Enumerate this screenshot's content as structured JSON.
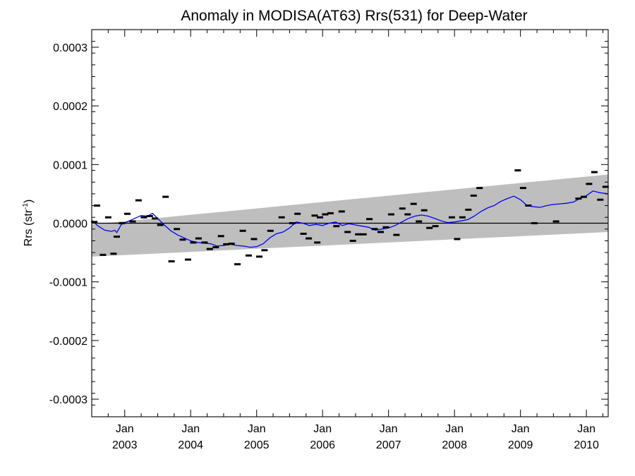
{
  "chart_data": {
    "type": "line",
    "title": "Anomaly in MODISA(AT63) Rrs(531) for Deep-Water",
    "ylabel_main": "Rrs (str",
    "ylabel_sup": "-1",
    "ylabel_close": ")",
    "xlabel": "",
    "ylim": [
      -0.00033,
      0.00033
    ],
    "xlim": [
      2002.5,
      2010.33
    ],
    "yticks": [
      {
        "value": 0.0003,
        "label": "0.0003"
      },
      {
        "value": 0.0002,
        "label": "0.0002"
      },
      {
        "value": 0.0001,
        "label": "0.0001"
      },
      {
        "value": 0.0,
        "label": "0.0000"
      },
      {
        "value": -0.0001,
        "label": "-0.0001"
      },
      {
        "value": -0.0002,
        "label": "-0.0002"
      },
      {
        "value": -0.0003,
        "label": "-0.0003"
      }
    ],
    "xticks": [
      {
        "value": 2003.0,
        "month": "Jan",
        "year": "2003"
      },
      {
        "value": 2004.0,
        "month": "Jan",
        "year": "2004"
      },
      {
        "value": 2005.0,
        "month": "Jan",
        "year": "2005"
      },
      {
        "value": 2006.0,
        "month": "Jan",
        "year": "2006"
      },
      {
        "value": 2007.0,
        "month": "Jan",
        "year": "2007"
      },
      {
        "value": 2008.0,
        "month": "Jan",
        "year": "2008"
      },
      {
        "value": 2009.0,
        "month": "Jan",
        "year": "2009"
      },
      {
        "value": 2010.0,
        "month": "Jan",
        "year": "2010"
      }
    ],
    "band": {
      "lower": [
        [
          2002.5,
          -5.7e-05
        ],
        [
          2010.33,
          -1.5e-05
        ]
      ],
      "upper": [
        [
          2002.5,
          -2e-06
        ],
        [
          2010.33,
          8.3e-05
        ]
      ],
      "color": "#bebebe"
    },
    "zero_line_color": "#000000",
    "monthly_points": [
      [
        2002.54,
        2e-06
      ],
      [
        2002.58,
        3e-05
      ],
      [
        2002.67,
        -5.4e-05
      ],
      [
        2002.75,
        1e-05
      ],
      [
        2002.83,
        -5.2e-05
      ],
      [
        2002.88,
        -2.3e-05
      ],
      [
        2002.96,
        0.0
      ],
      [
        2003.04,
        1.6e-05
      ],
      [
        2003.12,
        3e-06
      ],
      [
        2003.21,
        3.9e-05
      ],
      [
        2003.29,
        1e-05
      ],
      [
        2003.38,
        1.2e-05
      ],
      [
        2003.46,
        8e-06
      ],
      [
        2003.54,
        -3e-06
      ],
      [
        2003.62,
        4.5e-05
      ],
      [
        2003.71,
        -6.5e-05
      ],
      [
        2003.79,
        -1e-05
      ],
      [
        2003.88,
        -2.8e-05
      ],
      [
        2003.96,
        -6.2e-05
      ],
      [
        2004.04,
        -3.3e-05
      ],
      [
        2004.12,
        -2.6e-05
      ],
      [
        2004.21,
        -3.3e-05
      ],
      [
        2004.29,
        -4.4e-05
      ],
      [
        2004.38,
        -4.1e-05
      ],
      [
        2004.46,
        -2.2e-05
      ],
      [
        2004.54,
        -3.6e-05
      ],
      [
        2004.62,
        -3.5e-05
      ],
      [
        2004.71,
        -7e-05
      ],
      [
        2004.79,
        -1.3e-05
      ],
      [
        2004.88,
        -5.5e-05
      ],
      [
        2004.96,
        -2.7e-05
      ],
      [
        2005.04,
        -5.7e-05
      ],
      [
        2005.12,
        -4.6e-05
      ],
      [
        2005.21,
        -1.3e-05
      ],
      [
        2005.38,
        1e-05
      ],
      [
        2005.54,
        0.0
      ],
      [
        2005.62,
        1.6e-05
      ],
      [
        2005.71,
        -1.8e-05
      ],
      [
        2005.79,
        -2.6e-05
      ],
      [
        2005.88,
        1.3e-05
      ],
      [
        2005.92,
        -3.3e-05
      ],
      [
        2005.96,
        1e-05
      ],
      [
        2006.04,
        1.5e-05
      ],
      [
        2006.12,
        1.7e-05
      ],
      [
        2006.21,
        -5e-06
      ],
      [
        2006.29,
        2e-05
      ],
      [
        2006.38,
        -1.5e-05
      ],
      [
        2006.46,
        -3e-05
      ],
      [
        2006.54,
        -1.9e-05
      ],
      [
        2006.62,
        -1.9e-05
      ],
      [
        2006.71,
        7e-06
      ],
      [
        2006.79,
        -1e-05
      ],
      [
        2006.88,
        -1.5e-05
      ],
      [
        2006.96,
        -7e-06
      ],
      [
        2007.04,
        1.5e-05
      ],
      [
        2007.12,
        -2e-05
      ],
      [
        2007.21,
        2.5e-05
      ],
      [
        2007.29,
        1.5e-05
      ],
      [
        2007.38,
        3.3e-05
      ],
      [
        2007.46,
        3e-06
      ],
      [
        2007.54,
        2.2e-05
      ],
      [
        2007.62,
        -8e-06
      ],
      [
        2007.71,
        -5e-06
      ],
      [
        2007.96,
        1e-05
      ],
      [
        2008.04,
        -2.7e-05
      ],
      [
        2008.12,
        1e-05
      ],
      [
        2008.21,
        2.3e-05
      ],
      [
        2008.29,
        4.7e-05
      ],
      [
        2008.38,
        6e-05
      ],
      [
        2008.96,
        9e-05
      ],
      [
        2009.04,
        6e-05
      ],
      [
        2009.12,
        3e-05
      ],
      [
        2009.21,
        0.0
      ],
      [
        2009.54,
        3e-06
      ],
      [
        2009.88,
        4.2e-05
      ],
      [
        2009.96,
        4.5e-05
      ],
      [
        2010.04,
        6.7e-05
      ],
      [
        2010.12,
        8.7e-05
      ],
      [
        2010.21,
        4e-05
      ],
      [
        2010.29,
        6.2e-05
      ]
    ],
    "point_color": "#000000",
    "running_mean": {
      "color": "#0000ff",
      "points": [
        [
          2002.5,
          5e-06
        ],
        [
          2002.6,
          -5e-06
        ],
        [
          2002.7,
          -1.2e-05
        ],
        [
          2002.8,
          -1.4e-05
        ],
        [
          2002.85,
          -1.2e-05
        ],
        [
          2002.88,
          -1.6e-05
        ],
        [
          2002.95,
          -2e-06
        ],
        [
          2003.05,
          3e-06
        ],
        [
          2003.15,
          8e-06
        ],
        [
          2003.25,
          1.3e-05
        ],
        [
          2003.35,
          1.2e-05
        ],
        [
          2003.42,
          1.7e-05
        ],
        [
          2003.5,
          8e-06
        ],
        [
          2003.6,
          -3e-06
        ],
        [
          2003.7,
          -1.3e-05
        ],
        [
          2003.8,
          -2e-05
        ],
        [
          2003.9,
          -2.5e-05
        ],
        [
          2004.0,
          -3e-05
        ],
        [
          2004.1,
          -3.3e-05
        ],
        [
          2004.2,
          -3.4e-05
        ],
        [
          2004.3,
          -3.5e-05
        ],
        [
          2004.4,
          -3.9e-05
        ],
        [
          2004.5,
          -3.8e-05
        ],
        [
          2004.6,
          -3.6e-05
        ],
        [
          2004.7,
          -3.8e-05
        ],
        [
          2004.8,
          -3.9e-05
        ],
        [
          2004.9,
          -4.1e-05
        ],
        [
          2005.0,
          -4e-05
        ],
        [
          2005.1,
          -3.5e-05
        ],
        [
          2005.2,
          -2.5e-05
        ],
        [
          2005.3,
          -1.8e-05
        ],
        [
          2005.4,
          -1.5e-05
        ],
        [
          2005.5,
          -8e-06
        ],
        [
          2005.6,
          2e-06
        ],
        [
          2005.7,
          0.0
        ],
        [
          2005.8,
          -4e-06
        ],
        [
          2005.9,
          -2e-06
        ],
        [
          2006.0,
          -4e-06
        ],
        [
          2006.1,
          0.0
        ],
        [
          2006.2,
          2e-06
        ],
        [
          2006.3,
          -4e-06
        ],
        [
          2006.4,
          -1e-06
        ],
        [
          2006.5,
          -3e-06
        ],
        [
          2006.6,
          -5e-06
        ],
        [
          2006.7,
          -7e-06
        ],
        [
          2006.8,
          -1.2e-05
        ],
        [
          2006.9,
          -1e-05
        ],
        [
          2007.0,
          -8e-06
        ],
        [
          2007.1,
          -4e-06
        ],
        [
          2007.2,
          2e-06
        ],
        [
          2007.3,
          8e-06
        ],
        [
          2007.4,
          1.2e-05
        ],
        [
          2007.5,
          1.4e-05
        ],
        [
          2007.6,
          1.2e-05
        ],
        [
          2007.7,
          8e-06
        ],
        [
          2007.8,
          4e-06
        ],
        [
          2007.9,
          1e-06
        ],
        [
          2008.0,
          2e-06
        ],
        [
          2008.1,
          4e-06
        ],
        [
          2008.2,
          6e-06
        ],
        [
          2008.3,
          1.2e-05
        ],
        [
          2008.4,
          2e-05
        ],
        [
          2008.5,
          2.6e-05
        ],
        [
          2008.6,
          3e-05
        ],
        [
          2008.7,
          3.7e-05
        ],
        [
          2008.8,
          4.2e-05
        ],
        [
          2008.9,
          4.6e-05
        ],
        [
          2009.0,
          4e-05
        ],
        [
          2009.1,
          3e-05
        ],
        [
          2009.2,
          2.8e-05
        ],
        [
          2009.3,
          2.7e-05
        ],
        [
          2009.4,
          3e-05
        ],
        [
          2009.5,
          3.2e-05
        ],
        [
          2009.6,
          3.3e-05
        ],
        [
          2009.7,
          3.4e-05
        ],
        [
          2009.8,
          3.6e-05
        ],
        [
          2009.9,
          4.2e-05
        ],
        [
          2010.0,
          4.7e-05
        ],
        [
          2010.1,
          5.5e-05
        ],
        [
          2010.2,
          5.2e-05
        ],
        [
          2010.33,
          5e-05
        ]
      ]
    }
  }
}
